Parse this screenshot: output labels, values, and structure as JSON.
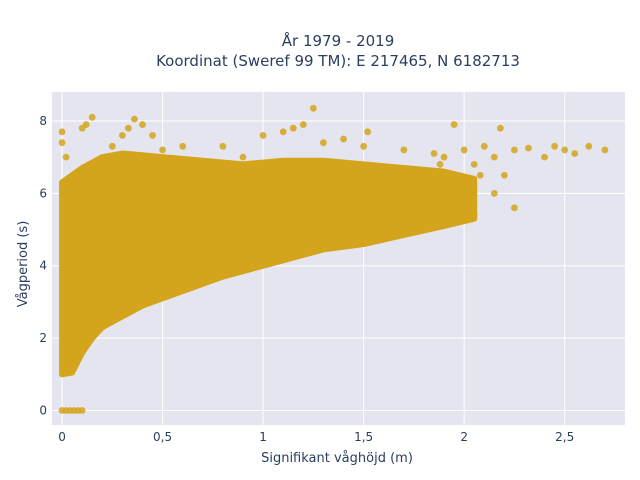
{
  "chart_data": {
    "type": "scatter",
    "title_line1": "År 1979 - 2019",
    "title_line2": "Koordinat (Sweref 99 TM): E 217465, N 6182713",
    "xlabel": "Signifikant våghöjd (m)",
    "ylabel": "Vågperiod (s)",
    "xlim": [
      -0.05,
      2.8
    ],
    "ylim": [
      -0.4,
      8.8
    ],
    "x_ticks": [
      {
        "value": 0,
        "label": "0"
      },
      {
        "value": 0.5,
        "label": "0,5"
      },
      {
        "value": 1,
        "label": "1"
      },
      {
        "value": 1.5,
        "label": "1,5"
      },
      {
        "value": 2,
        "label": "2"
      },
      {
        "value": 2.5,
        "label": "2,5"
      }
    ],
    "y_ticks": [
      {
        "value": 0,
        "label": "0"
      },
      {
        "value": 2,
        "label": "2"
      },
      {
        "value": 4,
        "label": "4"
      },
      {
        "value": 6,
        "label": "6"
      },
      {
        "value": 8,
        "label": "8"
      }
    ],
    "grid": true,
    "marker_color": "#d4a41c",
    "plot_background": "#e5e5ef",
    "points": [
      [
        0,
        0
      ],
      [
        0.02,
        0
      ],
      [
        0.04,
        0
      ],
      [
        0.06,
        0
      ],
      [
        0.08,
        0
      ],
      [
        0.1,
        0
      ],
      [
        0,
        7.7
      ],
      [
        0,
        7.4
      ],
      [
        0.02,
        7.0
      ],
      [
        0.1,
        7.8
      ],
      [
        0.12,
        7.9
      ],
      [
        0.15,
        8.1
      ],
      [
        0.25,
        7.3
      ],
      [
        0.3,
        7.6
      ],
      [
        0.33,
        7.8
      ],
      [
        0.36,
        8.05
      ],
      [
        0.4,
        7.9
      ],
      [
        0.45,
        7.6
      ],
      [
        0.5,
        7.2
      ],
      [
        0.6,
        7.3
      ],
      [
        0.8,
        7.3
      ],
      [
        0.9,
        7.0
      ],
      [
        1.0,
        7.6
      ],
      [
        1.1,
        7.7
      ],
      [
        1.15,
        7.8
      ],
      [
        1.25,
        8.35
      ],
      [
        1.2,
        7.9
      ],
      [
        1.3,
        7.4
      ],
      [
        1.4,
        7.5
      ],
      [
        1.52,
        7.7
      ],
      [
        1.5,
        7.3
      ],
      [
        1.7,
        7.2
      ],
      [
        1.85,
        7.1
      ],
      [
        1.9,
        7.0
      ],
      [
        1.95,
        7.9
      ],
      [
        2.0,
        7.2
      ],
      [
        2.08,
        6.5
      ],
      [
        2.05,
        6.8
      ],
      [
        2.1,
        7.3
      ],
      [
        2.15,
        7.0
      ],
      [
        2.18,
        7.8
      ],
      [
        2.25,
        7.2
      ],
      [
        2.32,
        7.25
      ],
      [
        2.4,
        7.0
      ],
      [
        2.45,
        7.3
      ],
      [
        2.5,
        7.2
      ],
      [
        2.55,
        7.1
      ],
      [
        2.62,
        7.3
      ],
      [
        2.7,
        7.2
      ],
      [
        2.2,
        6.5
      ],
      [
        2.25,
        5.6
      ],
      [
        2.05,
        5.4
      ],
      [
        2.15,
        6.0
      ],
      [
        1.95,
        5.5
      ],
      [
        1.6,
        6.2
      ],
      [
        1.8,
        6.5
      ],
      [
        1.9,
        6.4
      ],
      [
        1.98,
        6.2
      ],
      [
        1.75,
        5.3
      ],
      [
        1.6,
        5.0
      ],
      [
        1.65,
        6.6
      ],
      [
        1.88,
        6.8
      ],
      [
        2.0,
        6.1
      ],
      [
        1.93,
        5.8
      ]
    ],
    "cloud": {
      "lower_boundary": [
        [
          0,
          1.0
        ],
        [
          0.05,
          1.05
        ],
        [
          0.1,
          1.6
        ],
        [
          0.15,
          2.0
        ],
        [
          0.2,
          2.3
        ],
        [
          0.3,
          2.6
        ],
        [
          0.4,
          2.9
        ],
        [
          0.5,
          3.1
        ],
        [
          0.6,
          3.3
        ],
        [
          0.7,
          3.5
        ],
        [
          0.8,
          3.7
        ],
        [
          0.9,
          3.85
        ],
        [
          1.0,
          4.0
        ],
        [
          1.2,
          4.3
        ],
        [
          1.3,
          4.45
        ],
        [
          1.5,
          4.6
        ],
        [
          1.7,
          4.85
        ],
        [
          1.9,
          5.1
        ],
        [
          2.05,
          5.3
        ]
      ],
      "upper_boundary": [
        [
          0,
          6.3
        ],
        [
          0.1,
          6.7
        ],
        [
          0.2,
          7.0
        ],
        [
          0.3,
          7.1
        ],
        [
          0.5,
          7.0
        ],
        [
          0.7,
          6.9
        ],
        [
          0.9,
          6.8
        ],
        [
          1.1,
          6.9
        ],
        [
          1.3,
          6.9
        ],
        [
          1.5,
          6.8
        ],
        [
          1.7,
          6.7
        ],
        [
          1.9,
          6.6
        ],
        [
          2.05,
          6.4
        ]
      ]
    }
  }
}
